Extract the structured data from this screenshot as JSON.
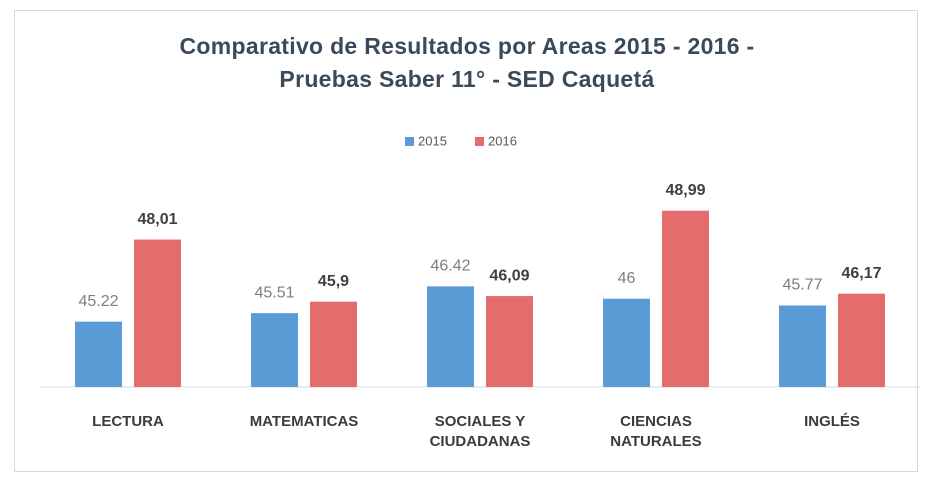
{
  "chart_data": {
    "type": "bar",
    "title": "Comparativo de Resultados por Areas 2015 - 2016 -\nPruebas Saber 11° - SED Caquetá",
    "categories": [
      "LECTURA",
      "MATEMATICAS",
      "SOCIALES Y\nCIUDADANAS",
      "CIENCIAS\nNATURALES",
      "INGLÉS"
    ],
    "series": [
      {
        "name": "2015",
        "color": "#5b9bd5",
        "values": [
          45.22,
          45.51,
          46.42,
          46,
          45.77
        ]
      },
      {
        "name": "2016",
        "color": "#e46c6c",
        "values": [
          48.01,
          45.9,
          46.09,
          48.99,
          46.17
        ],
        "value_labels": [
          "48,01",
          "45,9",
          "46,09",
          "48,99",
          "46,17"
        ]
      }
    ],
    "ylim": [
      43,
      50
    ],
    "legend": "top"
  }
}
